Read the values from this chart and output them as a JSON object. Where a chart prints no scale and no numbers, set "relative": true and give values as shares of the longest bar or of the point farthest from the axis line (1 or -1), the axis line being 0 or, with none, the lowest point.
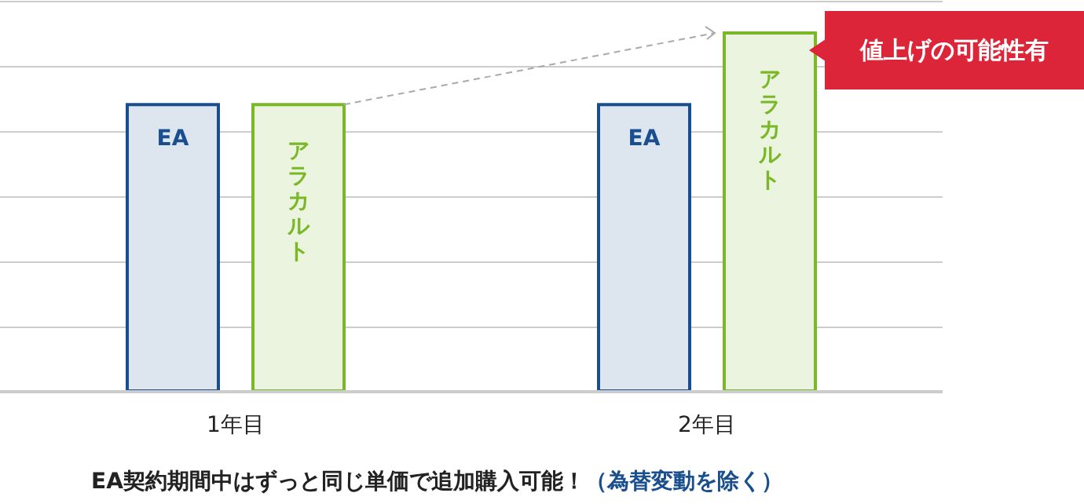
{
  "chart_data": {
    "type": "bar",
    "relative": true,
    "categories": [
      "1年目",
      "2年目"
    ],
    "series": [
      {
        "name": "EA",
        "color": "#1a4f8f",
        "values": [
          0.8,
          0.8
        ]
      },
      {
        "name": "アラカルト",
        "color": "#7ab828",
        "values": [
          0.8,
          1
        ]
      }
    ],
    "grid": "y",
    "legend": false,
    "annotations": [
      "値上げの可能性有",
      "EA契約期間中はずっと同じ単価で追加購入可能！",
      "（為替変動を除く）"
    ]
  }
}
